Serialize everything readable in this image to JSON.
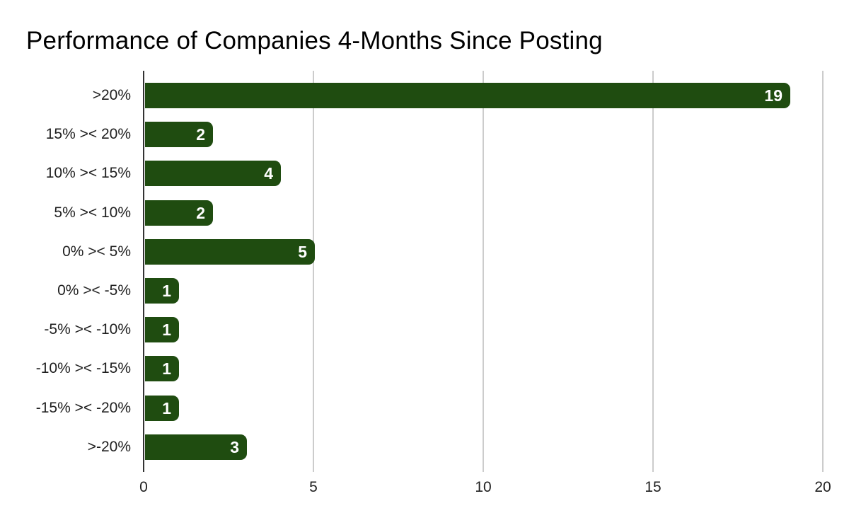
{
  "chart_data": {
    "type": "bar",
    "orientation": "horizontal",
    "title": "Performance of Companies 4-Months Since Posting",
    "categories": [
      ">20%",
      "15% >< 20%",
      "10% >< 15%",
      "5% >< 10%",
      "0% >< 5%",
      "0% >< -5%",
      "-5% >< -10%",
      "-10% >< -15%",
      "-15% >< -20%",
      ">-20%"
    ],
    "values": [
      19,
      2,
      4,
      2,
      5,
      1,
      1,
      1,
      1,
      3
    ],
    "x_ticks": [
      0,
      5,
      10,
      15,
      20
    ],
    "xlim": [
      0,
      20
    ],
    "xlabel": "",
    "ylabel": "",
    "legend": "none",
    "grid": "vertical-gridlines",
    "value_labels": "inside-end",
    "colors": {
      "bar": "#1f4c10",
      "value_label": "#ffffff",
      "gridline": "#cccccc",
      "axis_line": "#333333",
      "label_text": "#1f1f1f",
      "title_text": "#000000",
      "background": "#ffffff"
    }
  }
}
